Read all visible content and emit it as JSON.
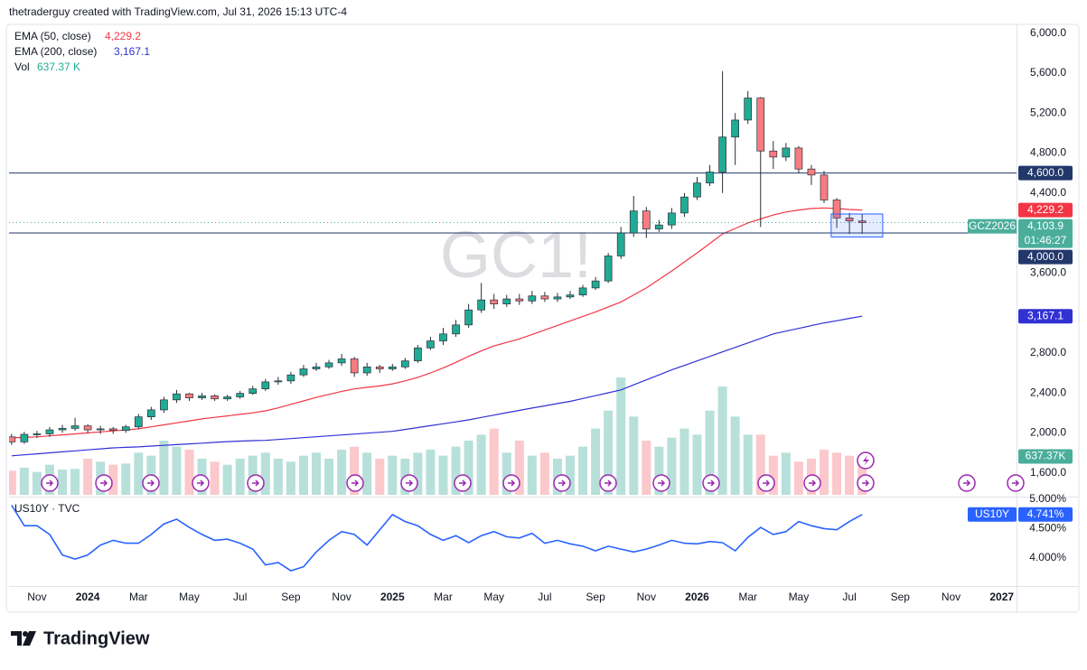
{
  "header": "thetraderguy created with TradingView.com, Jul 31, 2026 15:13 UTC-4",
  "footer": "TradingView",
  "chart_data": [
    {
      "type": "candlestick",
      "watermark": "GC1!",
      "x": [
        0,
        0.5,
        1,
        1.5,
        2,
        2.5,
        3,
        3.5,
        4,
        4.5,
        5,
        5.5,
        6,
        6.5,
        7,
        7.5,
        8,
        8.5,
        9,
        9.5,
        10,
        10.5,
        11,
        11.5,
        12,
        12.5,
        13,
        13.5,
        14,
        14.5,
        15,
        15.5,
        16,
        16.5,
        17,
        17.5,
        18,
        18.5,
        19,
        19.5,
        20,
        20.5,
        21,
        21.5,
        22,
        22.5,
        23,
        23.5,
        24,
        24.5,
        25,
        25.5,
        26,
        26.5,
        27,
        27.5,
        28,
        28.5,
        29,
        29.5,
        30,
        30.5,
        31,
        31.5,
        32,
        32.5,
        33,
        33.5
      ],
      "open": [
        1960,
        1910,
        1985,
        1990,
        2030,
        2045,
        2070,
        2030,
        2040,
        2025,
        2060,
        2160,
        2230,
        2330,
        2390,
        2350,
        2370,
        2340,
        2360,
        2395,
        2440,
        2510,
        2520,
        2580,
        2640,
        2660,
        2700,
        2740,
        2600,
        2660,
        2640,
        2660,
        2720,
        2850,
        2920,
        2990,
        3080,
        3230,
        3330,
        3290,
        3340,
        3320,
        3370,
        3340,
        3360,
        3380,
        3450,
        3520,
        3770,
        4000,
        4220,
        4040,
        4080,
        4200,
        4360,
        4500,
        4610,
        4960,
        5130,
        5350,
        4820,
        4760,
        4850,
        4640,
        4580,
        4330,
        4150,
        4120
      ],
      "high": [
        1990,
        2010,
        2020,
        2060,
        2080,
        2150,
        2085,
        2070,
        2060,
        2080,
        2190,
        2260,
        2360,
        2430,
        2400,
        2400,
        2385,
        2380,
        2420,
        2470,
        2540,
        2560,
        2610,
        2680,
        2700,
        2730,
        2790,
        2760,
        2700,
        2680,
        2690,
        2750,
        2880,
        2960,
        3050,
        3130,
        3290,
        3500,
        3390,
        3380,
        3390,
        3420,
        3410,
        3400,
        3420,
        3480,
        3560,
        3800,
        4060,
        4370,
        4260,
        4130,
        4250,
        4400,
        4560,
        4680,
        5620,
        5200,
        5420,
        5360,
        4920,
        4900,
        4870,
        4680,
        4620,
        4350,
        4200,
        4190
      ],
      "low": [
        1880,
        1890,
        1950,
        1960,
        2000,
        2020,
        2000,
        1990,
        1990,
        2000,
        2040,
        2130,
        2200,
        2300,
        2320,
        2330,
        2320,
        2320,
        2340,
        2380,
        2420,
        2480,
        2490,
        2560,
        2620,
        2640,
        2670,
        2560,
        2570,
        2600,
        2620,
        2640,
        2700,
        2830,
        2880,
        2960,
        3050,
        3200,
        3240,
        3260,
        3280,
        3290,
        3310,
        3310,
        3340,
        3360,
        3430,
        3500,
        3740,
        3960,
        3950,
        4010,
        4040,
        4160,
        4330,
        4470,
        4400,
        4680,
        5090,
        4060,
        4640,
        4720,
        4600,
        4480,
        4300,
        4050,
        3990,
        3990
      ],
      "close": [
        1910,
        1985,
        1990,
        2030,
        2045,
        2070,
        2030,
        2040,
        2025,
        2060,
        2160,
        2230,
        2330,
        2390,
        2350,
        2370,
        2340,
        2360,
        2395,
        2440,
        2510,
        2520,
        2580,
        2640,
        2660,
        2700,
        2740,
        2600,
        2660,
        2640,
        2660,
        2720,
        2850,
        2920,
        2990,
        3080,
        3230,
        3330,
        3290,
        3340,
        3320,
        3370,
        3340,
        3360,
        3380,
        3450,
        3520,
        3770,
        4000,
        4220,
        4040,
        4080,
        4200,
        4360,
        4500,
        4610,
        4960,
        5130,
        5350,
        4820,
        4760,
        4850,
        4640,
        4580,
        4330,
        4150,
        4120,
        4103.9
      ],
      "up_color": "#22ab94",
      "down_color": "#f77c80",
      "series": [
        {
          "name": "EMA (50, close)",
          "color": "#f23645",
          "legend_value": {
            "value": 4229.2,
            "label": "4,229.2"
          },
          "values": [
            1950,
            1955,
            1960,
            1970,
            1980,
            1990,
            2000,
            2010,
            2020,
            2030,
            2040,
            2060,
            2080,
            2100,
            2120,
            2140,
            2155,
            2170,
            2185,
            2200,
            2220,
            2250,
            2285,
            2320,
            2355,
            2385,
            2415,
            2440,
            2455,
            2470,
            2490,
            2520,
            2555,
            2600,
            2650,
            2705,
            2765,
            2820,
            2870,
            2905,
            2940,
            2985,
            3030,
            3075,
            3120,
            3165,
            3210,
            3260,
            3310,
            3380,
            3450,
            3535,
            3620,
            3710,
            3800,
            3895,
            3990,
            4045,
            4100,
            4140,
            4180,
            4210,
            4230,
            4245,
            4250,
            4245,
            4235,
            4229.2
          ]
        },
        {
          "name": "EMA (200, close)",
          "color": "#3131d4",
          "legend_value": {
            "value": 3167.1,
            "label": "3,167.1"
          },
          "values": [
            1770,
            1780,
            1790,
            1800,
            1810,
            1820,
            1830,
            1840,
            1850,
            1855,
            1860,
            1868,
            1875,
            1882,
            1890,
            1897,
            1905,
            1912,
            1918,
            1922,
            1925,
            1934,
            1943,
            1952,
            1961,
            1970,
            1979,
            1988,
            1997,
            2006,
            2015,
            2034,
            2053,
            2072,
            2091,
            2110,
            2130,
            2154,
            2178,
            2202,
            2225,
            2248,
            2270,
            2293,
            2315,
            2344,
            2372,
            2401,
            2430,
            2480,
            2530,
            2580,
            2630,
            2675,
            2720,
            2765,
            2810,
            2855,
            2900,
            2945,
            2990,
            3018,
            3045,
            3073,
            3100,
            3122,
            3145,
            3167.1
          ]
        }
      ],
      "volume": {
        "name": "Vol",
        "legend_value": {
          "value": 637.37,
          "label": "637.37 K"
        },
        "badge": {
          "value": 637.37,
          "label": "637.37K"
        },
        "up_color": "#b7e0da",
        "down_color": "#fbc8cb",
        "badge_color": "#4bae9b",
        "lim": [
          0,
          3000
        ],
        "values": [
          400,
          450,
          380,
          500,
          420,
          430,
          600,
          550,
          500,
          520,
          700,
          650,
          900,
          800,
          750,
          600,
          550,
          500,
          600,
          650,
          700,
          600,
          550,
          650,
          700,
          600,
          750,
          800,
          700,
          600,
          650,
          600,
          700,
          750,
          650,
          800,
          900,
          1000,
          1100,
          700,
          900,
          650,
          700,
          600,
          650,
          800,
          1100,
          1400,
          1950,
          1300,
          900,
          800,
          950,
          1100,
          1000,
          1400,
          1800,
          1300,
          1000,
          1000,
          650,
          700,
          550,
          600,
          750,
          700,
          650,
          637.37
        ]
      },
      "ylim": [
        1380,
        6060
      ],
      "yticks": [
        {
          "value": 6000,
          "label": "6,000.0"
        },
        {
          "value": 5600,
          "label": "5,600.0"
        },
        {
          "value": 5200,
          "label": "5,200.0"
        },
        {
          "value": 4800,
          "label": "4,800.0"
        },
        {
          "value": 4400,
          "label": "4,400.0"
        },
        {
          "value": 3600,
          "label": "3,600.0"
        },
        {
          "value": 2800,
          "label": "2,800.0"
        },
        {
          "value": 2400,
          "label": "2,400.0"
        },
        {
          "value": 2000,
          "label": "2,000.0"
        },
        {
          "value": 1600,
          "label": "1,600.0"
        }
      ],
      "xlim": [
        -0.1,
        39.58
      ],
      "xticks": [
        {
          "value": 1,
          "label": "Nov"
        },
        {
          "value": 3,
          "label": "2024"
        },
        {
          "value": 5,
          "label": "Mar"
        },
        {
          "value": 7,
          "label": "May"
        },
        {
          "value": 9,
          "label": "Jul"
        },
        {
          "value": 11,
          "label": "Sep"
        },
        {
          "value": 13,
          "label": "Nov"
        },
        {
          "value": 15,
          "label": "2025"
        },
        {
          "value": 17,
          "label": "Mar"
        },
        {
          "value": 19,
          "label": "May"
        },
        {
          "value": 21,
          "label": "Jul"
        },
        {
          "value": 23,
          "label": "Sep"
        },
        {
          "value": 25,
          "label": "Nov"
        },
        {
          "value": 27,
          "label": "2026"
        },
        {
          "value": 29,
          "label": "Mar"
        },
        {
          "value": 31,
          "label": "May"
        },
        {
          "value": 33,
          "label": "Jul"
        },
        {
          "value": 35,
          "label": "Sep"
        },
        {
          "value": 37,
          "label": "Nov"
        },
        {
          "value": 39,
          "label": "2027"
        }
      ],
      "levels": [
        {
          "value": 4600,
          "label": "4,600.0"
        },
        {
          "value": 4000,
          "label": "4,000.0"
        }
      ],
      "level_color": "#22386a",
      "last_price": {
        "symbol": "GCZ2026",
        "value": 4103.9,
        "label": "4,103.9",
        "countdown": "01:46:27",
        "color": "#4bae9b"
      },
      "box": {
        "xlim": [
          32.28,
          34.31
        ],
        "ylim": [
          3960,
          4190
        ],
        "color": "#2962ff"
      }
    },
    {
      "type": "line",
      "title": "US10Y · TVC",
      "x": [
        0,
        0.5,
        1,
        1.5,
        2,
        2.5,
        3,
        3.5,
        4,
        4.5,
        5,
        5.5,
        6,
        6.5,
        7,
        7.5,
        8,
        8.5,
        9,
        9.5,
        10,
        10.5,
        11,
        11.5,
        12,
        12.5,
        13,
        13.5,
        14,
        14.5,
        15,
        15.5,
        16,
        16.5,
        17,
        17.5,
        18,
        18.5,
        19,
        19.5,
        20,
        20.5,
        21,
        21.5,
        22,
        22.5,
        23,
        23.5,
        24,
        24.5,
        25,
        25.5,
        26,
        26.5,
        27,
        27.5,
        28,
        28.5,
        29,
        29.5,
        30,
        30.5,
        31,
        31.5,
        32,
        32.5,
        33,
        33.5
      ],
      "series": [
        {
          "name": "US10Y",
          "color": "#2962ff",
          "last_value": {
            "value": 4.741,
            "label": "4.741%"
          },
          "values": [
            4.9,
            4.55,
            4.55,
            4.4,
            4.05,
            3.98,
            4.05,
            4.22,
            4.3,
            4.25,
            4.25,
            4.4,
            4.58,
            4.66,
            4.52,
            4.4,
            4.3,
            4.32,
            4.25,
            4.15,
            3.88,
            3.92,
            3.78,
            3.85,
            4.1,
            4.3,
            4.45,
            4.4,
            4.22,
            4.48,
            4.74,
            4.62,
            4.55,
            4.4,
            4.3,
            4.38,
            4.26,
            4.38,
            4.45,
            4.36,
            4.34,
            4.42,
            4.25,
            4.3,
            4.24,
            4.2,
            4.12,
            4.2,
            4.15,
            4.1,
            4.15,
            4.22,
            4.3,
            4.25,
            4.24,
            4.28,
            4.26,
            4.12,
            4.35,
            4.52,
            4.4,
            4.45,
            4.62,
            4.55,
            4.5,
            4.48,
            4.62,
            4.741
          ]
        }
      ],
      "ylim": [
        3.55,
        5.0
      ],
      "yticks": [
        {
          "value": 5,
          "label": "5.000%"
        },
        {
          "value": 4.5,
          "label": "4.500%"
        },
        {
          "value": 4,
          "label": "4.000%"
        }
      ],
      "xlim": [
        -0.1,
        39.58
      ]
    }
  ]
}
